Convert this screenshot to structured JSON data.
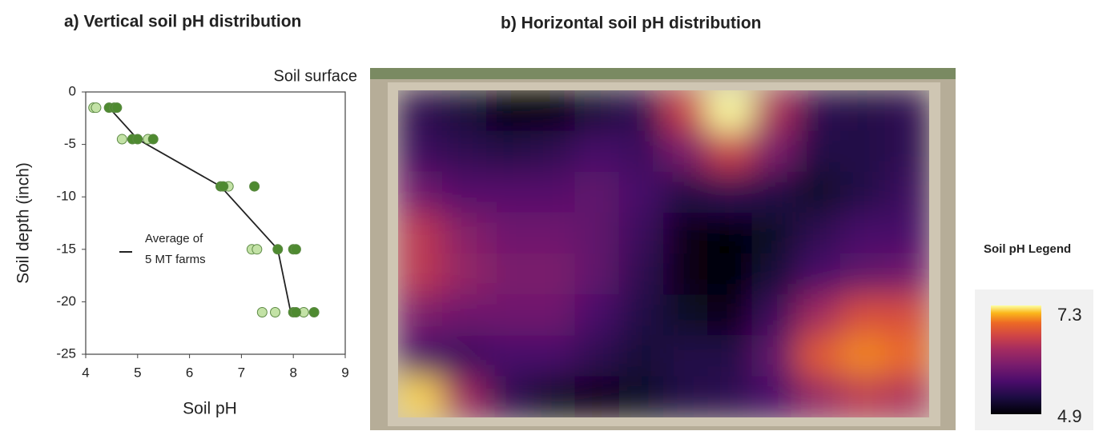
{
  "chart_data": [
    {
      "type": "scatter",
      "title": "a) Vertical soil pH distribution",
      "annotation": "Soil surface",
      "xlabel": "Soil pH",
      "ylabel": "Soil depth (inch)",
      "xlim": [
        4,
        9
      ],
      "ylim": [
        -25,
        0
      ],
      "xticks": [
        4,
        5,
        6,
        7,
        8,
        9
      ],
      "yticks": [
        0,
        -5,
        -10,
        -15,
        -20,
        -25
      ],
      "series": [
        {
          "color": "#c3e2a6",
          "x": [
            4.15,
            4.2,
            4.7,
            5.2,
            6.75,
            7.2,
            7.3,
            7.4,
            7.65,
            8.2
          ],
          "y": [
            -1.5,
            -1.5,
            -4.5,
            -4.5,
            -9,
            -15,
            -15,
            -21,
            -21,
            -21
          ]
        },
        {
          "color": "#4e8a30",
          "x": [
            4.45,
            4.55,
            4.6,
            4.9,
            5.0,
            5.3,
            6.6,
            6.65,
            7.25,
            7.7,
            8.0,
            8.05,
            8.0,
            8.05,
            8.4
          ],
          "y": [
            -1.5,
            -1.5,
            -1.5,
            -4.5,
            -4.5,
            -4.5,
            -9,
            -9,
            -9,
            -15,
            -15,
            -15,
            -21,
            -21,
            -21
          ]
        },
        {
          "name": "Average of 5 MT farms",
          "mode": "line",
          "color": "#222222",
          "x": [
            4.45,
            5.0,
            6.6,
            7.7,
            7.95
          ],
          "y": [
            -1.5,
            -4.5,
            -9,
            -15,
            -21
          ]
        }
      ]
    },
    {
      "type": "heatmap",
      "title": "b) Horizontal soil pH distribution",
      "legend_title": "Soil pH Legend",
      "colorscale": "inferno",
      "clim": [
        4.9,
        7.3
      ],
      "values": [
        [
          5.4,
          5.2,
          4.9,
          4.9,
          5.2,
          5.4,
          6.6,
          7.3,
          6.4,
          5.4,
          5.3,
          5.4
        ],
        [
          5.5,
          5.4,
          5.3,
          5.4,
          5.6,
          5.5,
          6.0,
          6.6,
          6.0,
          5.3,
          5.3,
          5.4
        ],
        [
          5.9,
          5.7,
          5.7,
          5.7,
          5.8,
          5.6,
          5.3,
          5.4,
          5.3,
          5.1,
          5.3,
          5.5
        ],
        [
          6.5,
          6.1,
          5.9,
          5.9,
          5.8,
          5.5,
          5.0,
          4.9,
          5.1,
          5.4,
          5.6,
          5.6
        ],
        [
          6.5,
          6.2,
          6.0,
          6.0,
          5.8,
          5.4,
          5.0,
          4.9,
          5.2,
          5.6,
          5.8,
          5.9
        ],
        [
          6.0,
          5.9,
          5.9,
          5.9,
          5.6,
          5.3,
          5.1,
          5.0,
          5.5,
          6.3,
          6.7,
          6.7
        ],
        [
          5.6,
          5.5,
          5.6,
          5.6,
          5.4,
          5.2,
          5.3,
          5.3,
          5.8,
          6.8,
          7.0,
          6.9
        ],
        [
          7.2,
          6.3,
          5.4,
          5.1,
          5.0,
          5.1,
          5.3,
          5.4,
          5.6,
          6.2,
          6.5,
          6.4
        ]
      ]
    }
  ]
}
